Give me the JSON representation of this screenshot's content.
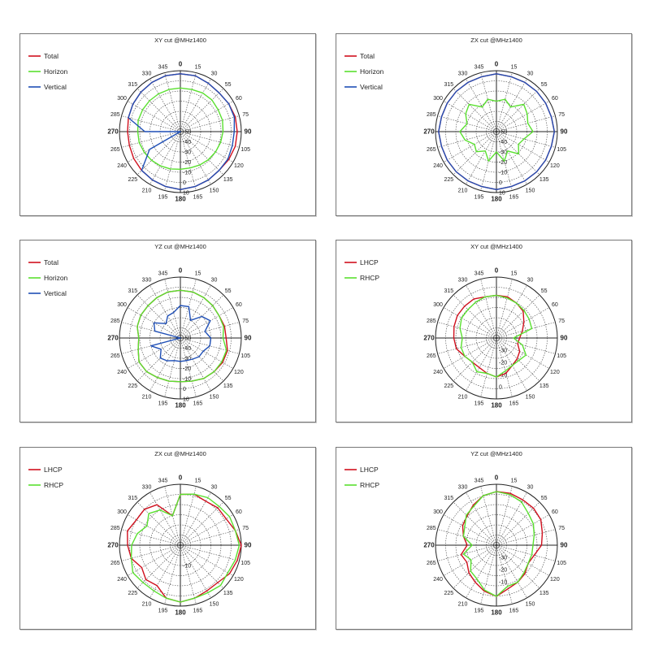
{
  "colors": {
    "LHCP": "#d0101e",
    "RHCP": "#5ae030",
    "Total": "#d0101e",
    "Horizon": "#5ae030",
    "Vertical": "#1f4fb6"
  },
  "chart_data": [
    {
      "type": "polar-line",
      "title": "XY cut @MHz1400",
      "angle_labels": [
        "0",
        "15",
        "30",
        "55",
        "60",
        "75",
        "90",
        "105",
        "120",
        "135",
        "150",
        "165",
        "180",
        "195",
        "210",
        "225",
        "240",
        "265",
        "270",
        "285",
        "300",
        "315",
        "330",
        "345"
      ],
      "rlim": [
        -50,
        10
      ],
      "radial_tick_labels": [
        "-50",
        "-40",
        "-30",
        "-20",
        "-10",
        "0",
        "10"
      ],
      "legend": [
        "Total",
        "Horizon",
        "Vertical"
      ],
      "series": [
        {
          "name": "Total",
          "values": [
            7,
            7,
            5,
            4,
            5,
            6,
            6,
            6,
            5,
            4,
            5,
            6,
            7,
            6,
            5,
            4,
            3,
            2,
            2,
            3,
            4,
            5,
            6,
            7
          ]
        },
        {
          "name": "Horizon",
          "values": [
            -7,
            -7,
            -6,
            -6,
            -7,
            -7,
            -8,
            -9,
            -10,
            -11,
            -12,
            -13,
            -13,
            -12,
            -11,
            -10,
            -9,
            -8,
            -8,
            -7,
            -7,
            -7,
            -7,
            -7
          ]
        },
        {
          "name": "Vertical",
          "values": [
            7,
            7,
            5,
            4,
            5,
            5,
            3,
            3,
            4,
            4,
            5,
            6,
            7,
            6,
            5,
            4,
            -15,
            -50,
            -15,
            3,
            4,
            5,
            6,
            7
          ]
        }
      ]
    },
    {
      "type": "polar-line",
      "title": "ZX cut @MHz1400",
      "angle_labels": [
        "0",
        "15",
        "30",
        "55",
        "60",
        "75",
        "90",
        "105",
        "120",
        "135",
        "150",
        "165",
        "180",
        "195",
        "210",
        "225",
        "240",
        "265",
        "270",
        "285",
        "300",
        "315",
        "330",
        "345"
      ],
      "rlim": [
        -50,
        10
      ],
      "radial_tick_labels": [
        "-50",
        "-40",
        "-30",
        "-20",
        "-10",
        "0",
        "10"
      ],
      "legend": [
        "Total",
        "Horizon",
        "Vertical"
      ],
      "series": [
        {
          "name": "Total",
          "values": [
            7,
            6,
            6,
            6,
            6,
            6,
            7,
            6,
            6,
            6,
            6,
            6,
            7,
            6,
            6,
            6,
            6,
            6,
            7,
            6,
            6,
            6,
            6,
            6
          ]
        },
        {
          "name": "Horizon",
          "values": [
            -20,
            -17,
            -22,
            -12,
            -15,
            -18,
            -14,
            -22,
            -25,
            -19,
            -28,
            -20,
            -30,
            -20,
            -28,
            -22,
            -25,
            -18,
            -14,
            -20,
            -15,
            -12,
            -22,
            -17
          ]
        },
        {
          "name": "Vertical",
          "values": [
            7,
            6,
            6,
            6,
            6,
            6,
            7,
            6,
            6,
            6,
            6,
            6,
            7,
            6,
            6,
            6,
            6,
            6,
            7,
            6,
            6,
            6,
            6,
            6
          ]
        }
      ]
    },
    {
      "type": "polar-line",
      "title": "YZ cut @MHz1400",
      "angle_labels": [
        "0",
        "15",
        "30",
        "55",
        "60",
        "75",
        "90",
        "105",
        "120",
        "135",
        "150",
        "165",
        "180",
        "195",
        "210",
        "225",
        "240",
        "265",
        "270",
        "285",
        "300",
        "315",
        "330",
        "345"
      ],
      "rlim": [
        -50,
        10
      ],
      "radial_tick_labels": [
        "-50",
        "-40",
        "-30",
        "-20",
        "-10",
        "0",
        "10"
      ],
      "legend": [
        "Total",
        "Horizon",
        "Vertical"
      ],
      "series": [
        {
          "name": "Total",
          "values": [
            -3,
            -3,
            -4,
            -5,
            -6,
            -5,
            -5,
            -2,
            -2,
            -3,
            -4,
            -6,
            -7,
            -6,
            -5,
            -3,
            -3,
            -7,
            -9,
            -6,
            -5,
            -5,
            -4,
            -3
          ]
        },
        {
          "name": "Horizon",
          "values": [
            -3,
            -3,
            -4,
            -5,
            -6,
            -6,
            -8,
            -3,
            -3,
            -3,
            -4,
            -6,
            -7,
            -6,
            -5,
            -3,
            -3,
            -7,
            -9,
            -6,
            -5,
            -5,
            -4,
            -3
          ]
        },
        {
          "name": "Vertical",
          "values": [
            -18,
            -18,
            -30,
            -20,
            -16,
            -25,
            -20,
            -20,
            -24,
            -24,
            -26,
            -27,
            -27,
            -27,
            -24,
            -22,
            -28,
            -20,
            -50,
            -24,
            -20,
            -30,
            -25,
            -24
          ]
        }
      ]
    },
    {
      "type": "polar-line",
      "title": "XY cut @MHz1400",
      "angle_labels": [
        "0",
        "15",
        "30",
        "55",
        "60",
        "75",
        "90",
        "105",
        "120",
        "135",
        "150",
        "165",
        "180",
        "195",
        "210",
        "225",
        "240",
        "265",
        "270",
        "285",
        "300",
        "315",
        "330",
        "345"
      ],
      "rlim": [
        -40,
        10
      ],
      "radial_tick_labels": [
        "-30",
        "-20",
        "-10",
        "0"
      ],
      "legend": [
        "LHCP",
        "RHCP"
      ],
      "series": [
        {
          "name": "LHCP",
          "values": [
            -5,
            -5,
            -7,
            -9,
            -14,
            -18,
            -21,
            -22,
            -18,
            -16,
            -14,
            -10,
            -8,
            -10,
            -12,
            -12,
            -10,
            -6,
            -5,
            -4,
            -3,
            -3,
            -3,
            -5
          ]
        },
        {
          "name": "RHCP",
          "values": [
            -5,
            -6,
            -7,
            -8,
            -9,
            -10,
            -26,
            -18,
            -12,
            -14,
            -14,
            -12,
            -8,
            -10,
            -8,
            -12,
            -10,
            -10,
            -12,
            -9,
            -7,
            -7,
            -6,
            -5
          ]
        }
      ]
    },
    {
      "type": "polar-line",
      "title": "ZX cut @MHz1400",
      "angle_labels": [
        "0",
        "15",
        "30",
        "55",
        "60",
        "75",
        "90",
        "105",
        "120",
        "135",
        "150",
        "165",
        "180",
        "195",
        "210",
        "225",
        "240",
        "265",
        "270",
        "285",
        "300",
        "315",
        "330",
        "345"
      ],
      "rlim": [
        -20,
        10
      ],
      "radial_tick_labels": [
        "-10"
      ],
      "legend": [
        "LHCP",
        "RHCP"
      ],
      "series": [
        {
          "name": "LHCP",
          "values": [
            5,
            6,
            5,
            6,
            6,
            8,
            10,
            9,
            8,
            6,
            6,
            7,
            8,
            7,
            3,
            4,
            2,
            5,
            6,
            7,
            5,
            5,
            3,
            -5
          ]
        },
        {
          "name": "RHCP",
          "values": [
            5,
            6,
            7,
            7,
            8,
            8,
            9,
            8,
            7,
            8,
            7,
            7,
            8,
            7,
            6,
            6,
            7,
            5,
            4,
            2,
            -1,
            2,
            0,
            -5
          ]
        }
      ]
    },
    {
      "type": "polar-line",
      "title": "YZ cut @MHz1400",
      "angle_labels": [
        "0",
        "15",
        "30",
        "55",
        "60",
        "75",
        "90",
        "105",
        "120",
        "135",
        "150",
        "165",
        "180",
        "195",
        "210",
        "225",
        "240",
        "265",
        "270",
        "285",
        "300",
        "315",
        "330",
        "345"
      ],
      "rlim": [
        -40,
        10
      ],
      "radial_tick_labels": [
        "-30",
        "-20",
        "-10"
      ],
      "legend": [
        "LHCP",
        "RHCP"
      ],
      "series": [
        {
          "name": "LHCP",
          "values": [
            4,
            4,
            3,
            3,
            2,
            -1,
            -3,
            -8,
            -10,
            -7,
            -5,
            -3,
            2,
            -1,
            -5,
            -8,
            -12,
            -10,
            -16,
            -12,
            -8,
            -6,
            -2,
            2
          ]
        },
        {
          "name": "RHCP",
          "values": [
            4,
            3,
            1,
            -3,
            -5,
            -8,
            -10,
            -10,
            -10,
            -8,
            -5,
            -5,
            2,
            -2,
            -8,
            -10,
            -16,
            -12,
            -20,
            -12,
            -10,
            -5,
            -3,
            2
          ]
        }
      ]
    }
  ]
}
